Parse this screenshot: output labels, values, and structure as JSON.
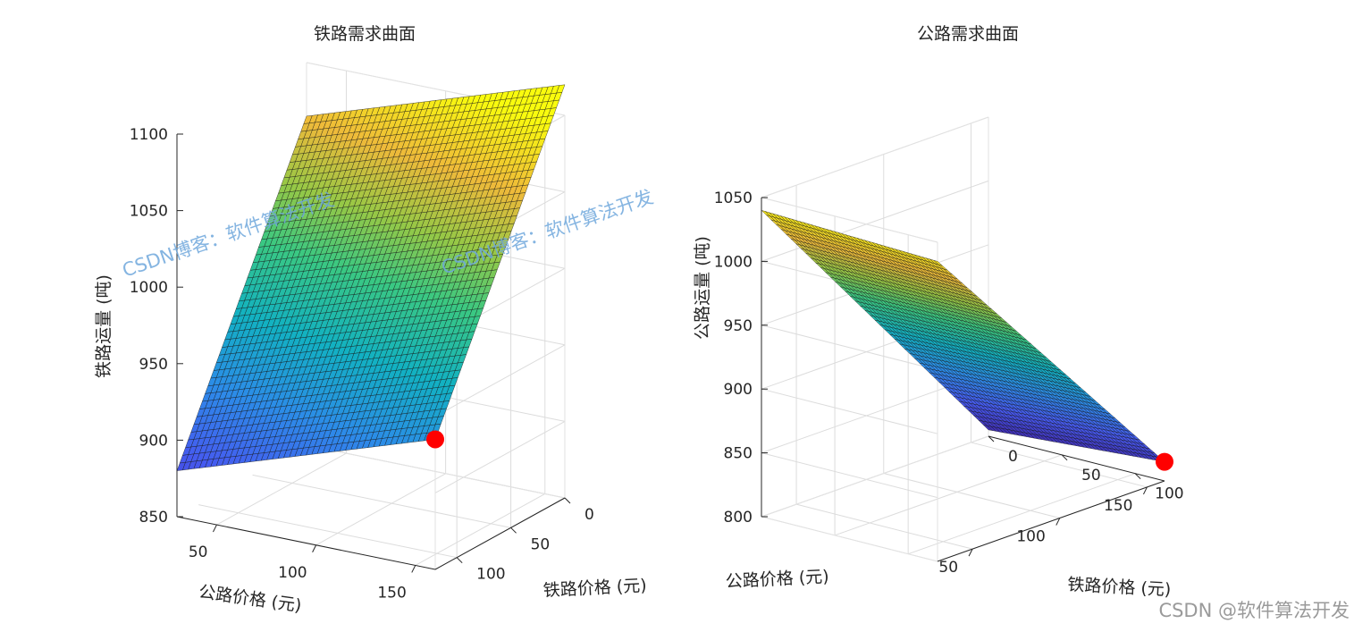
{
  "chart_data": [
    {
      "type": "surface3d",
      "title": "铁路需求曲面",
      "xlabel": "公路价格 (元)",
      "ylabel": "铁路价格 (元)",
      "zlabel": "铁路运量 (吨)",
      "x_range": [
        30,
        160
      ],
      "y_range": [
        0,
        120
      ],
      "zlim": [
        850,
        1100
      ],
      "x_ticks": [
        50,
        100,
        150
      ],
      "y_ticks": [
        0,
        50,
        100
      ],
      "z_ticks": [
        850,
        900,
        950,
        1000,
        1050,
        1100
      ],
      "corner_z": {
        "x_min_y_min": 1065,
        "x_min_y_max": 880,
        "x_max_y_min": 1120,
        "x_max_y_max": 935
      },
      "marker": {
        "x": 160,
        "y": 120,
        "z": 935
      },
      "grid": true,
      "view": "from-low-x-high-y"
    },
    {
      "type": "surface3d",
      "title": "公路需求曲面",
      "xlabel": "公路价格 (元)",
      "ylabel": "铁路价格 (元)",
      "zlabel": "公路运量 (吨)",
      "x_range": [
        30,
        160
      ],
      "y_range": [
        0,
        120
      ],
      "zlim": [
        800,
        1050
      ],
      "x_ticks": [
        50,
        100,
        150
      ],
      "y_ticks": [
        0,
        50,
        100
      ],
      "z_ticks": [
        800,
        850,
        900,
        950,
        1000,
        1050
      ],
      "corner_z": {
        "x_min_y_min": 1040,
        "x_min_y_max": 1035,
        "x_max_y_min": 805,
        "x_max_y_max": 815
      },
      "marker": {
        "x": 160,
        "y": 120,
        "z": 815
      },
      "grid": true,
      "view": "from-high-x-high-y"
    }
  ],
  "watermarks": [
    "CSDN博客：软件算法开发",
    "CSDN博客：软件算法开发"
  ],
  "credit": "CSDN @软件算法开发",
  "colors": {
    "marker": "#ff0000",
    "axis": "#262626",
    "grid": "#dcdcdc",
    "mesh": "#111111"
  }
}
